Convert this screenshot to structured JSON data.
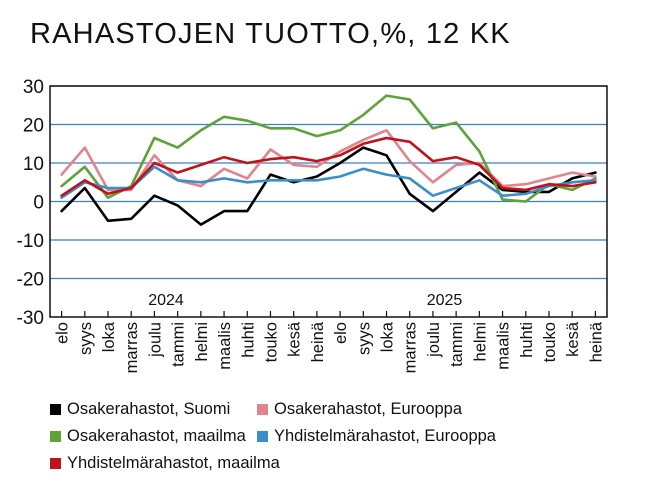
{
  "title": "RAHASTOJEN TUOTTO,%, 12 KK",
  "chart_data": {
    "type": "line",
    "ylim": [
      -30,
      30
    ],
    "yticks": [
      30,
      20,
      10,
      0,
      -10,
      -20,
      -30
    ],
    "grid": true,
    "categories": [
      "elo",
      "syys",
      "loka",
      "marras",
      "joulu",
      "tammi",
      "helmi",
      "maalis",
      "huhti",
      "touko",
      "kesä",
      "heinä",
      "elo",
      "syys",
      "loka",
      "marras",
      "joulu",
      "tammi",
      "helmi",
      "maalis",
      "huhti",
      "touko",
      "kesä",
      "heinä"
    ],
    "year_labels": [
      {
        "label": "2024",
        "center_index": 4.5
      },
      {
        "label": "2025",
        "center_index": 16.5
      }
    ],
    "series": [
      {
        "name": "Osakerahastot, Suomi",
        "color": "#000000",
        "values": [
          -2.5,
          3.5,
          -5,
          -4.5,
          1.5,
          -1,
          -6,
          -2.5,
          -2.5,
          7,
          5,
          6.5,
          10,
          14,
          12,
          2,
          -2.5,
          2.5,
          7.5,
          3,
          2.5,
          2.5,
          6,
          7.5
        ]
      },
      {
        "name": "Osakerahastot, Eurooppa",
        "color": "#e1848c",
        "values": [
          7,
          14,
          3,
          3,
          12,
          5.5,
          4,
          8.5,
          6,
          13.5,
          9.5,
          9,
          13,
          16,
          18.5,
          10.5,
          5,
          9.5,
          10,
          4,
          4.5,
          6,
          7.5,
          6.5
        ]
      },
      {
        "name": "Osakerahastot, maailma",
        "color": "#5da33a",
        "values": [
          4,
          9,
          1,
          4,
          16.5,
          14,
          18.5,
          22,
          21,
          19,
          19,
          17,
          18.5,
          22.5,
          27.5,
          26.5,
          19,
          20.5,
          13,
          0.5,
          0,
          4.5,
          3,
          6
        ]
      },
      {
        "name": "Yhdistelmärahastot, Eurooppa",
        "color": "#3c8ecb",
        "values": [
          1,
          5,
          3.5,
          3.5,
          9,
          5.5,
          5,
          6,
          5,
          5.5,
          5.5,
          5.5,
          6.5,
          8.5,
          7,
          6,
          1.5,
          3.5,
          5.5,
          1.5,
          2,
          4,
          5,
          5.5
        ]
      },
      {
        "name": "Yhdistelmärahastot, maailma",
        "color": "#c1121c",
        "values": [
          1.5,
          5.5,
          2,
          3.5,
          10,
          7.5,
          9.5,
          11.5,
          10,
          11,
          11.5,
          10.5,
          12,
          15,
          16.5,
          15.5,
          10.5,
          11.5,
          9.5,
          3.5,
          3,
          4.5,
          4,
          5
        ]
      }
    ]
  }
}
